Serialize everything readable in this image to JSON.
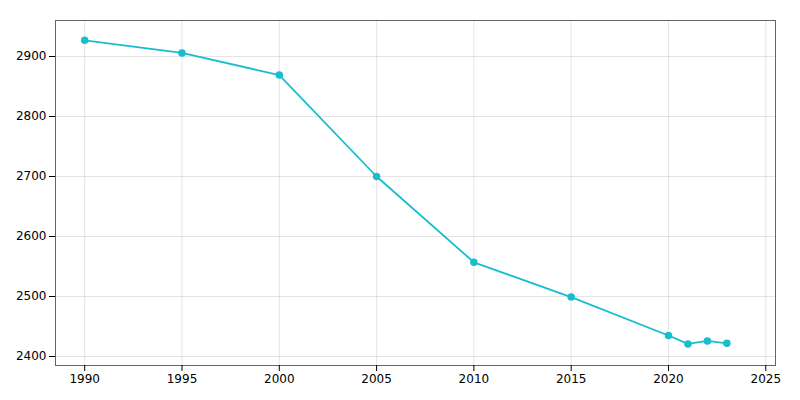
{
  "chart_data": {
    "type": "line",
    "x": [
      1990,
      1995,
      2000,
      2005,
      2010,
      2015,
      2020,
      2021,
      2022,
      2023
    ],
    "values": [
      2927,
      2906,
      2869,
      2700,
      2557,
      2499,
      2435,
      2421,
      2426,
      2422
    ],
    "color": "#17BECF",
    "marker": "circle",
    "xlim": [
      1988.5,
      2025.5
    ],
    "ylim": [
      2385,
      2960
    ],
    "xticks": [
      1990,
      1995,
      2000,
      2005,
      2010,
      2015,
      2020,
      2025
    ],
    "yticks": [
      2400,
      2500,
      2600,
      2700,
      2800,
      2900
    ],
    "grid": true
  }
}
